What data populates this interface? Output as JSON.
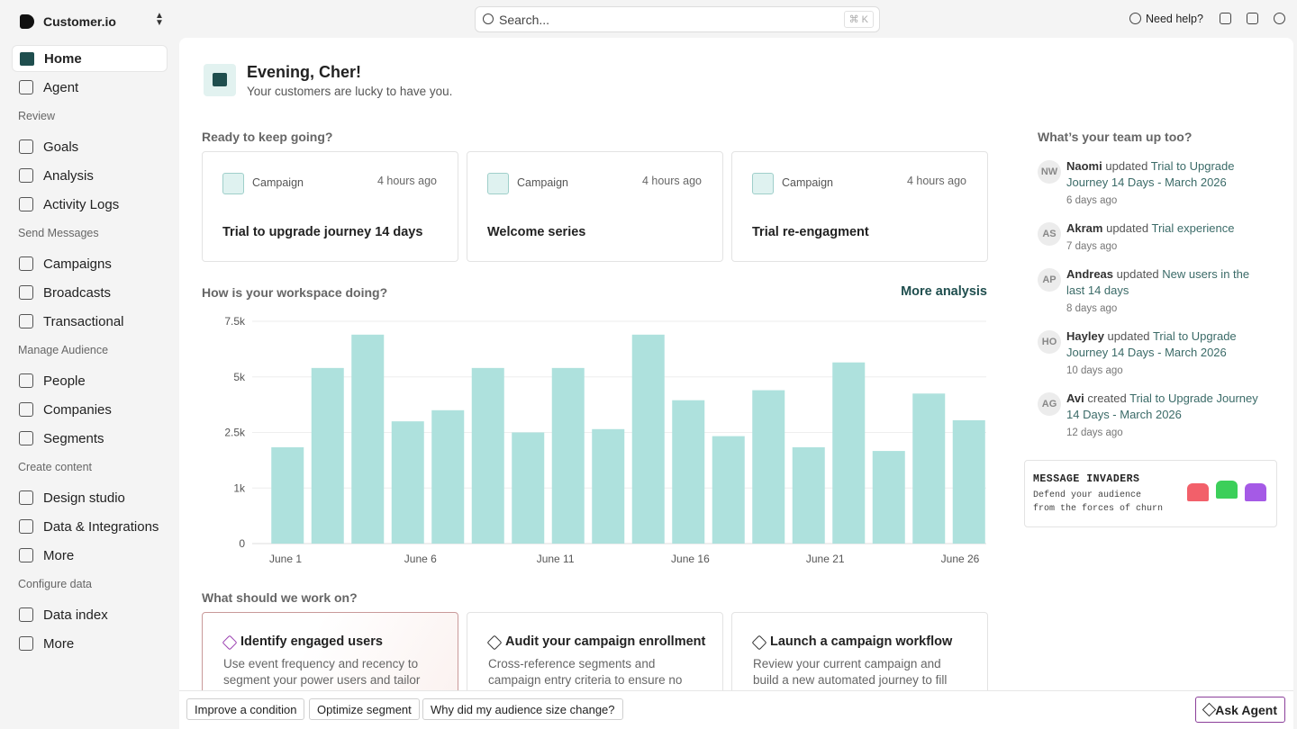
{
  "header": {
    "brand": "Customer.io",
    "search": "Search...",
    "shortcut": "⌘ K",
    "help": "Need help?"
  },
  "sidebar": {
    "top": [
      "Home",
      "Agent"
    ],
    "sections": [
      {
        "title": "Review",
        "items": [
          "Goals",
          "Analysis",
          "Activity Logs"
        ]
      },
      {
        "title": "Send Messages",
        "items": [
          "Campaigns",
          "Broadcasts",
          "Transactional"
        ]
      },
      {
        "title": "Manage Audience",
        "items": [
          "People",
          "Companies",
          "Segments"
        ]
      },
      {
        "title": "Create content",
        "items": [
          "Design studio",
          "Data & Integrations",
          "More"
        ]
      },
      {
        "title": "Configure data",
        "items": [
          "Data index",
          "More"
        ]
      }
    ]
  },
  "greeting": {
    "title": "Evening, Cher!",
    "subtitle": "Your customers are lucky to have you."
  },
  "recent": {
    "heading": "Ready to keep going?",
    "cards": [
      {
        "kind": "Campaign",
        "time": "4 hours ago",
        "name": "Trial to upgrade journey 14 days"
      },
      {
        "kind": "Campaign",
        "time": "4 hours ago",
        "name": "Welcome series"
      },
      {
        "kind": "Campaign",
        "time": "4 hours ago",
        "name": "Trial re-engagment"
      }
    ]
  },
  "workspace": {
    "heading": "How is your workspace doing?",
    "link": "More analysis"
  },
  "chart_data": {
    "type": "bar",
    "color": "#aee1dd",
    "grid": true,
    "categories": [
      null,
      null,
      null,
      null,
      null,
      null,
      null,
      null,
      null,
      null,
      null,
      null,
      null,
      null,
      null,
      null,
      null,
      null
    ],
    "values": [
      2100,
      5400,
      6900,
      3000,
      3500,
      5400,
      2500,
      5400,
      2650,
      6900,
      3950,
      2400,
      4400,
      2100,
      5650,
      2000,
      4250,
      3050
    ],
    "x_labels": [
      "June 1",
      "June 6",
      "June 11",
      "June 16",
      "June 21",
      "June 26"
    ],
    "ylim": [
      0,
      7500
    ],
    "yticks": [
      0,
      {
        "value": 1000,
        "label": "1k"
      },
      {
        "value": 2500,
        "label": "2.5k"
      },
      {
        "value": 5000,
        "label": "5k"
      },
      {
        "value": 7500,
        "label": "7.5k"
      }
    ]
  },
  "team": {
    "heading": "What’s your team up too?",
    "items": [
      {
        "initials": "NW",
        "name": "Naomi",
        "verb": "updated",
        "target": "Trial to Upgrade Journey 14 Days - March 2026",
        "time": "6 days ago"
      },
      {
        "initials": "AS",
        "name": "Akram",
        "verb": "updated",
        "target": "Trial experience",
        "time": "7 days ago"
      },
      {
        "initials": "AP",
        "name": "Andreas",
        "verb": "updated",
        "target": "New users in the last 14 days",
        "time": "8 days ago"
      },
      {
        "initials": "HO",
        "name": "Hayley",
        "verb": "updated",
        "target": "Trial to Upgrade Journey 14 Days - March 2026",
        "time": "10 days ago"
      },
      {
        "initials": "AG",
        "name": "Avi",
        "verb": "created",
        "target": "Trial to Upgrade Journey 14 Days - March 2026",
        "time": "12 days ago"
      }
    ]
  },
  "invaders": {
    "title": "MESSAGE INVADERS",
    "lines": [
      "Defend your audience",
      "from the forces of churn"
    ]
  },
  "suggestions": {
    "heading": "What should we work on?",
    "cards": [
      {
        "title": "Identify engaged users",
        "description": "Use event frequency and recency to segment your power users and tailor"
      },
      {
        "title": "Audit your campaign enrollment",
        "description": "Cross-reference segments and campaign entry criteria to ensure no"
      },
      {
        "title": "Launch a campaign workflow",
        "description": "Review your current campaign and build a new automated journey to fill"
      }
    ]
  },
  "footer": {
    "chips": [
      "Improve a condition",
      "Optimize segment",
      "Why did my audience size change?"
    ],
    "button": "Ask Agent"
  }
}
